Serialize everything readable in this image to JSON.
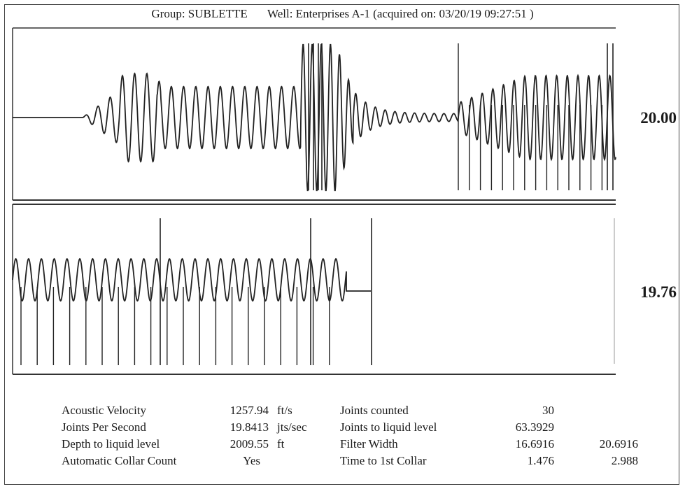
{
  "header": {
    "group": "Group: SUBLETTE",
    "well": "Well: Enterprises A-1 (acquired on: 03/20/19 09:27:51 )"
  },
  "chart_data": [
    {
      "type": "line",
      "name": "upper_panel",
      "value_label": "20.00",
      "waveform": [
        {
          "t_frac": 0.0,
          "amp": 0.0
        }
      ],
      "quiet_end": 0.118,
      "burst_start": 0.48,
      "burst_end": 0.525,
      "markers_start": 0.735,
      "markers_count": 14
    },
    {
      "type": "line",
      "name": "lower_panel",
      "value_label": "19.76",
      "markers_count": 20
    }
  ],
  "stats": {
    "left": [
      {
        "label": "Acoustic Velocity",
        "value": "1257.94",
        "unit": "ft/s"
      },
      {
        "label": "Joints Per Second",
        "value": "19.8413",
        "unit": "jts/sec"
      },
      {
        "label": "Depth to liquid level",
        "value": "2009.55",
        "unit": "ft"
      },
      {
        "label": "Automatic Collar Count",
        "value": "Yes",
        "unit": ""
      }
    ],
    "right": [
      {
        "label": "Joints counted",
        "value1": "30",
        "value2": ""
      },
      {
        "label": "Joints to liquid level",
        "value1": "63.3929",
        "value2": ""
      },
      {
        "label": "Filter Width",
        "value1": "16.6916",
        "value2": "20.6916"
      },
      {
        "label": "Time to 1st Collar",
        "value1": "1.476",
        "value2": "2.988"
      }
    ]
  }
}
